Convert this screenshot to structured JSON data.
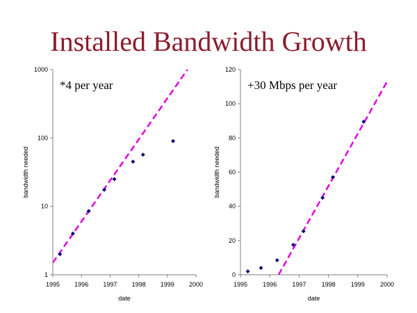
{
  "title": "Installed Bandwidth Growth",
  "colors": {
    "title": "#8b1c2c",
    "points": "#0a0a78",
    "fit": "#e000e0",
    "axis": "#808080"
  },
  "chart_data": [
    {
      "type": "scatter",
      "title": "",
      "annotation": "*4 per year",
      "xlabel": "date",
      "ylabel": "bandwidth needed",
      "xlim": [
        1995,
        2000
      ],
      "ylim": [
        1,
        1000
      ],
      "yscale": "log",
      "grid": false,
      "xticks": [
        1995,
        1996,
        1997,
        1998,
        1999,
        2000
      ],
      "yticks": [
        1,
        10,
        100,
        1000
      ],
      "xtick_labels": [
        "1995",
        "1996",
        "1997",
        "1998",
        "1999",
        "2000"
      ],
      "ytick_labels": [
        "1",
        "10",
        "100",
        "1000"
      ],
      "series": [
        {
          "x": [
            1995.25,
            1995.7,
            1996.25,
            1996.8,
            1997.15,
            1997.8,
            1998.15,
            1999.2
          ],
          "y": [
            2,
            4,
            8.5,
            17.5,
            25,
            45,
            57,
            90
          ]
        }
      ],
      "fit_line": {
        "style": "dashed",
        "x": [
          1995,
          1999.7
        ],
        "y": [
          1.5,
          1000
        ]
      }
    },
    {
      "type": "scatter",
      "title": "",
      "annotation": "+30 Mbps per year",
      "xlabel": "date",
      "ylabel": "bandwidth needed",
      "xlim": [
        1995,
        2000
      ],
      "ylim": [
        0,
        120
      ],
      "yscale": "linear",
      "grid": false,
      "xticks": [
        1995,
        1996,
        1997,
        1998,
        1999,
        2000
      ],
      "yticks": [
        0,
        20,
        40,
        60,
        80,
        100,
        120
      ],
      "xtick_labels": [
        "1995",
        "1996",
        "1997",
        "1998",
        "1999",
        "2000"
      ],
      "ytick_labels": [
        "0",
        "20",
        "40",
        "60",
        "80",
        "100",
        "120"
      ],
      "series": [
        {
          "x": [
            1995.25,
            1995.7,
            1996.25,
            1996.8,
            1997.15,
            1997.8,
            1998.15,
            1999.2
          ],
          "y": [
            2,
            4,
            8.5,
            17.5,
            25.5,
            45,
            57,
            89.5
          ]
        }
      ],
      "fit_line": {
        "style": "dashed",
        "x": [
          1996.3,
          2000
        ],
        "y": [
          0,
          113
        ]
      }
    }
  ]
}
